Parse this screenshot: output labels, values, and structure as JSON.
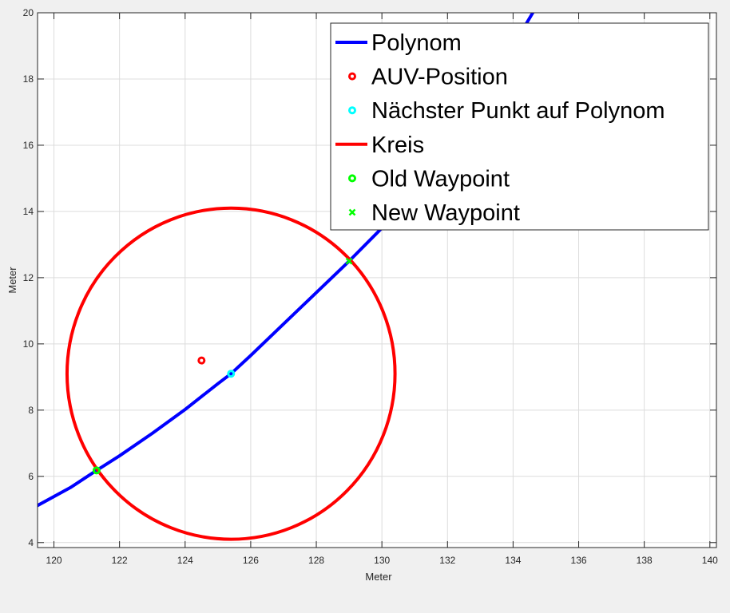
{
  "chart_data": {
    "type": "line",
    "xlabel": "Meter",
    "ylabel": "Meter",
    "xlim": [
      119.5,
      140.2
    ],
    "ylim": [
      3.85,
      20
    ],
    "xticks": [
      120,
      122,
      124,
      126,
      128,
      130,
      132,
      134,
      136,
      138,
      140
    ],
    "yticks": [
      4,
      6,
      8,
      10,
      12,
      14,
      16,
      18,
      20
    ],
    "grid": true,
    "legend_position": "top-right",
    "series": [
      {
        "name": "Polynom",
        "kind": "line",
        "color": "#0000ff",
        "x": [
          119.5,
          120.5,
          121.3,
          122.0,
          123.0,
          124.0,
          125.0,
          125.4,
          126.0,
          127.0,
          128.0,
          129.0,
          130.0,
          131.0,
          132.0,
          132.5,
          133.0,
          133.5,
          134.0,
          134.6
        ],
        "y": [
          5.12,
          5.66,
          6.18,
          6.62,
          7.3,
          8.02,
          8.8,
          9.1,
          9.65,
          10.6,
          11.55,
          12.5,
          13.5,
          14.55,
          15.7,
          16.4,
          17.15,
          18.0,
          19.0,
          20.0
        ]
      },
      {
        "name": "AUV-Position",
        "kind": "marker",
        "marker": "o",
        "color": "#ff0000",
        "x": [
          124.5
        ],
        "y": [
          9.5
        ]
      },
      {
        "name": "Nächster Punkt auf Polynom",
        "kind": "marker",
        "marker": "o",
        "color": "#00ffff",
        "x": [
          125.4
        ],
        "y": [
          9.1
        ]
      },
      {
        "name": "Kreis",
        "kind": "circle",
        "color": "#ff0000",
        "center": [
          125.4,
          9.1
        ],
        "radius": 5.0
      },
      {
        "name": "Old Waypoint",
        "kind": "marker",
        "marker": "o",
        "color": "#00ff00",
        "x": [
          121.3
        ],
        "y": [
          6.18
        ]
      },
      {
        "name": "New Waypoint",
        "kind": "marker",
        "marker": "x",
        "color": "#00ff00",
        "x": [
          129.0
        ],
        "y": [
          12.5
        ]
      }
    ]
  }
}
